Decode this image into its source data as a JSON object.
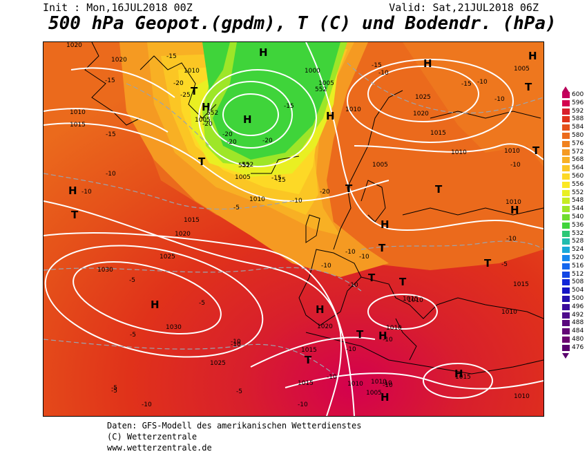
{
  "header": {
    "init": "Init : Mon,16JUL2018 00Z",
    "valid": "Valid: Sat,21JUL2018 06Z",
    "title": "500 hPa Geopot.(gpdm), T (C) und Bodendr. (hPa)"
  },
  "legend": {
    "values": [
      "600",
      "596",
      "592",
      "588",
      "584",
      "580",
      "576",
      "572",
      "568",
      "564",
      "560",
      "556",
      "552",
      "548",
      "544",
      "540",
      "536",
      "532",
      "528",
      "524",
      "520",
      "516",
      "512",
      "508",
      "504",
      "500",
      "496",
      "492",
      "488",
      "484",
      "480",
      "476"
    ],
    "colors": [
      "#c4005c",
      "#d4004e",
      "#d81f2c",
      "#e0321a",
      "#e5501a",
      "#eb6a1c",
      "#f08220",
      "#f59a22",
      "#f8b024",
      "#fbc624",
      "#fdd926",
      "#fbe824",
      "#e9ef22",
      "#c6ec22",
      "#9ee628",
      "#6fdd2e",
      "#3fd43a",
      "#2cc876",
      "#22bcae",
      "#1aa8d8",
      "#1688ee",
      "#1466ee",
      "#1246e4",
      "#1026d8",
      "#1414c4",
      "#2410ae",
      "#3a0c9c",
      "#4e0a8c",
      "#5a087e",
      "#640676",
      "#6c0470",
      "#5a006e"
    ]
  },
  "map": {
    "highs": [
      {
        "label": "H"
      },
      {
        "label": "H"
      },
      {
        "label": "H"
      },
      {
        "label": "H"
      },
      {
        "label": "H"
      },
      {
        "label": "H"
      },
      {
        "label": "H"
      },
      {
        "label": "H"
      },
      {
        "label": "H"
      },
      {
        "label": "H"
      },
      {
        "label": "H"
      },
      {
        "label": "H"
      },
      {
        "label": "H"
      },
      {
        "label": "H"
      }
    ],
    "lows": [
      {
        "label": "T"
      },
      {
        "label": "T"
      },
      {
        "label": "T"
      },
      {
        "label": "T"
      },
      {
        "label": "T"
      },
      {
        "label": "T"
      },
      {
        "label": "T"
      },
      {
        "label": "T"
      },
      {
        "label": "T"
      },
      {
        "label": "T"
      },
      {
        "label": "T"
      },
      {
        "label": "T"
      },
      {
        "label": "T"
      }
    ],
    "isobar_labels": [
      "1020",
      "1010",
      "1010",
      "1015",
      "1000",
      "1005",
      "1005",
      "1025",
      "1020",
      "1015",
      "1010",
      "1005",
      "1010",
      "1010",
      "1005",
      "1015",
      "1020",
      "1025",
      "1030",
      "1030",
      "1025",
      "1020",
      "1015",
      "1010",
      "1015",
      "1010",
      "1010",
      "1005",
      "1010",
      "1010",
      "1015",
      "1010",
      "1010",
      "1015",
      "1005",
      "1020",
      "1015",
      "1010"
    ],
    "temp_labels": [
      "-15",
      "-15",
      "-15",
      "-20",
      "-25",
      "-20",
      "-20",
      "-15",
      "-15",
      "-20",
      "-20",
      "-15",
      "-20",
      "-10",
      "-15",
      "-10",
      "-10",
      "-10",
      "-15",
      "-10",
      "-10",
      "-10",
      "-10",
      "-10",
      "-10",
      "-10",
      "-10",
      "-5",
      "-5",
      "-5",
      "-5",
      "-5",
      "-5",
      "-10",
      "-5",
      "-10",
      "-10",
      "-10",
      "-10",
      "-10",
      "-10",
      "-5",
      "-10",
      "-10"
    ],
    "geopot_labels": [
      "552",
      "552",
      "552",
      "552"
    ]
  },
  "footer": {
    "line1": "Daten: GFS-Modell des amerikanischen Wetterdienstes",
    "line2": "(C) Wetterzentrale",
    "line3": "www.wetterzentrale.de"
  }
}
